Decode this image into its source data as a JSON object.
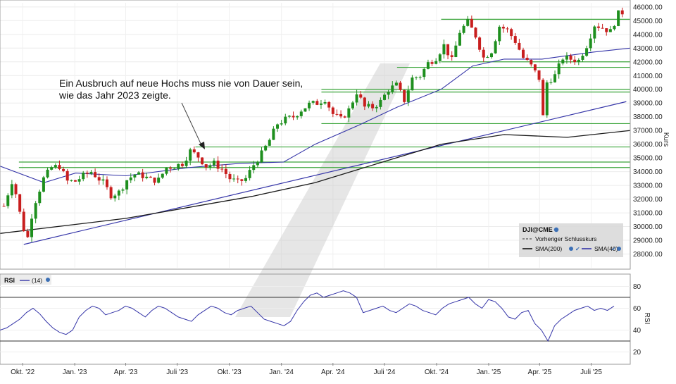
{
  "annotation": {
    "line1": "Ein Ausbruch auf neue Hochs muss nie von Dauer sein,",
    "line2": "wie das Jahr 2023 zeigte."
  },
  "legend": {
    "symbol": "DJI@CME",
    "prev_close": "Vorheriger Schlusskurs",
    "sma200": "SMA(200)",
    "sma40": "SMA(40)"
  },
  "rsi_header": {
    "label": "RSI",
    "period": "(14)"
  },
  "colors": {
    "up": "#1e8f1e",
    "down": "#c81e1e",
    "sma40": "#3535a8",
    "sma200": "#1a1a1a",
    "support": "#3aa53a",
    "trendline": "#3535a8",
    "rsi": "#3535a8",
    "panel_bg": "#d9d9d9"
  },
  "chart_data": [
    {
      "type": "candlestick",
      "symbol": "DJI@CME",
      "ylabel": "Kurs",
      "ylim": [
        27000,
        46300
      ],
      "y_ticks": [
        "28000.00",
        "29000.00",
        "30000.00",
        "31000.00",
        "32000.00",
        "33000.00",
        "34000.00",
        "35000.00",
        "36000.00",
        "37000.00",
        "38000.00",
        "39000.00",
        "40000.00",
        "41000.00",
        "42000.00",
        "43000.00",
        "44000.00",
        "45000.00",
        "46000.00"
      ],
      "x_ticks": [
        "Okt. '22",
        "Jan. '23",
        "Apr. '23",
        "Juli '23",
        "Okt. '23",
        "Jan. '24",
        "Apr. '24",
        "Juli '24",
        "Okt. '24",
        "Jan. '25",
        "Apr. '25",
        "Juli '25"
      ],
      "close_path": [
        [
          "2022-08-29",
          31500
        ],
        [
          "2022-09-12",
          33300
        ],
        [
          "2022-09-19",
          32400
        ],
        [
          "2022-09-26",
          31000
        ],
        [
          "2022-10-03",
          29800
        ],
        [
          "2022-10-10",
          29200
        ],
        [
          "2022-10-17",
          30800
        ],
        [
          "2022-10-24",
          31900
        ],
        [
          "2022-11-07",
          33500
        ],
        [
          "2022-11-21",
          34300
        ],
        [
          "2022-12-05",
          34400
        ],
        [
          "2022-12-19",
          33300
        ],
        [
          "2023-01-02",
          33300
        ],
        [
          "2023-01-16",
          33700
        ],
        [
          "2023-01-30",
          34000
        ],
        [
          "2023-02-20",
          33200
        ],
        [
          "2023-03-06",
          32300
        ],
        [
          "2023-03-20",
          32500
        ],
        [
          "2023-04-03",
          33400
        ],
        [
          "2023-04-17",
          33800
        ],
        [
          "2023-05-01",
          33700
        ],
        [
          "2023-05-15",
          33400
        ],
        [
          "2023-05-29",
          33400
        ],
        [
          "2023-06-12",
          34300
        ],
        [
          "2023-06-26",
          34400
        ],
        [
          "2023-07-10",
          34600
        ],
        [
          "2023-07-24",
          35500
        ],
        [
          "2023-08-07",
          35100
        ],
        [
          "2023-08-21",
          34400
        ],
        [
          "2023-09-04",
          34600
        ],
        [
          "2023-09-18",
          34200
        ],
        [
          "2023-10-02",
          33500
        ],
        [
          "2023-10-16",
          33200
        ],
        [
          "2023-10-30",
          33500
        ],
        [
          "2023-11-13",
          34500
        ],
        [
          "2023-11-27",
          35300
        ],
        [
          "2023-12-11",
          36300
        ],
        [
          "2023-12-25",
          37500
        ],
        [
          "2024-01-08",
          37800
        ],
        [
          "2024-01-22",
          38000
        ],
        [
          "2024-02-05",
          38500
        ],
        [
          "2024-02-19",
          38900
        ],
        [
          "2024-03-04",
          39000
        ],
        [
          "2024-03-18",
          39300
        ],
        [
          "2024-04-01",
          38200
        ],
        [
          "2024-04-15",
          37800
        ],
        [
          "2024-04-29",
          38500
        ],
        [
          "2024-05-13",
          39800
        ],
        [
          "2024-05-27",
          38700
        ],
        [
          "2024-06-10",
          38700
        ],
        [
          "2024-06-24",
          39100
        ],
        [
          "2024-07-08",
          40000
        ],
        [
          "2024-07-22",
          40300
        ],
        [
          "2024-08-05",
          39200
        ],
        [
          "2024-08-19",
          40800
        ],
        [
          "2024-09-02",
          41000
        ],
        [
          "2024-09-16",
          41900
        ],
        [
          "2024-09-30",
          42300
        ],
        [
          "2024-10-14",
          43200
        ],
        [
          "2024-10-28",
          42100
        ],
        [
          "2024-11-11",
          44200
        ],
        [
          "2024-11-25",
          44900
        ],
        [
          "2024-12-09",
          43900
        ],
        [
          "2024-12-23",
          42300
        ],
        [
          "2025-01-06",
          42800
        ],
        [
          "2025-01-20",
          44600
        ],
        [
          "2025-02-03",
          44300
        ],
        [
          "2025-02-17",
          43500
        ],
        [
          "2025-03-03",
          42300
        ],
        [
          "2025-03-17",
          41700
        ],
        [
          "2025-03-31",
          40800
        ],
        [
          "2025-04-07",
          38000
        ],
        [
          "2025-04-14",
          40500
        ],
        [
          "2025-04-28",
          41000
        ],
        [
          "2025-05-12",
          42300
        ],
        [
          "2025-05-26",
          42200
        ],
        [
          "2025-06-09",
          42100
        ],
        [
          "2025-06-23",
          43200
        ],
        [
          "2025-07-07",
          44700
        ],
        [
          "2025-07-21",
          44500
        ],
        [
          "2025-08-04",
          44200
        ],
        [
          "2025-08-18",
          45500
        ],
        [
          "2025-08-25",
          45600
        ]
      ],
      "series": [
        {
          "name": "SMA(40)",
          "points": [
            [
              0,
              34400
            ],
            [
              0.07,
              33200
            ],
            [
              0.12,
              33900
            ],
            [
              0.2,
              33700
            ],
            [
              0.3,
              34300
            ],
            [
              0.38,
              34600
            ],
            [
              0.45,
              34700
            ],
            [
              0.5,
              36000
            ],
            [
              0.57,
              37400
            ],
            [
              0.63,
              38700
            ],
            [
              0.7,
              40000
            ],
            [
              0.75,
              41700
            ],
            [
              0.8,
              42200
            ],
            [
              0.86,
              42200
            ],
            [
              0.94,
              42700
            ],
            [
              1,
              43000
            ]
          ]
        },
        {
          "name": "SMA(200)",
          "points": [
            [
              0,
              29500
            ],
            [
              0.2,
              30600
            ],
            [
              0.4,
              32200
            ],
            [
              0.5,
              33200
            ],
            [
              0.6,
              34600
            ],
            [
              0.7,
              36000
            ],
            [
              0.8,
              36700
            ],
            [
              0.9,
              36500
            ],
            [
              1,
              37000
            ]
          ]
        }
      ],
      "support_levels": [
        45100,
        42000,
        41600,
        40000,
        39800,
        37500,
        35800,
        34700,
        34300
      ],
      "trendline": {
        "from": [
          "2022-10-03",
          28700
        ],
        "to": [
          "2025-09-01",
          39100
        ]
      }
    },
    {
      "type": "line",
      "name": "RSI (14)",
      "ylabel": "RSI",
      "ylim": [
        10,
        90
      ],
      "y_ticks": [
        "20",
        "40",
        "60",
        "80"
      ],
      "levels": [
        70,
        30
      ],
      "values": [
        40,
        42,
        46,
        50,
        56,
        60,
        55,
        48,
        42,
        38,
        36,
        40,
        52,
        58,
        62,
        60,
        54,
        56,
        58,
        62,
        60,
        56,
        52,
        58,
        62,
        60,
        56,
        52,
        50,
        48,
        54,
        58,
        62,
        60,
        56,
        54,
        58,
        60,
        62,
        56,
        50,
        48,
        46,
        44,
        48,
        58,
        66,
        72,
        74,
        70,
        72,
        74,
        76,
        74,
        70,
        56,
        58,
        60,
        62,
        58,
        56,
        60,
        64,
        62,
        58,
        56,
        54,
        60,
        64,
        66,
        68,
        70,
        64,
        60,
        68,
        66,
        60,
        52,
        50,
        56,
        58,
        46,
        40,
        30,
        44,
        50,
        54,
        58,
        60,
        62,
        58,
        60,
        58,
        62
      ]
    }
  ]
}
